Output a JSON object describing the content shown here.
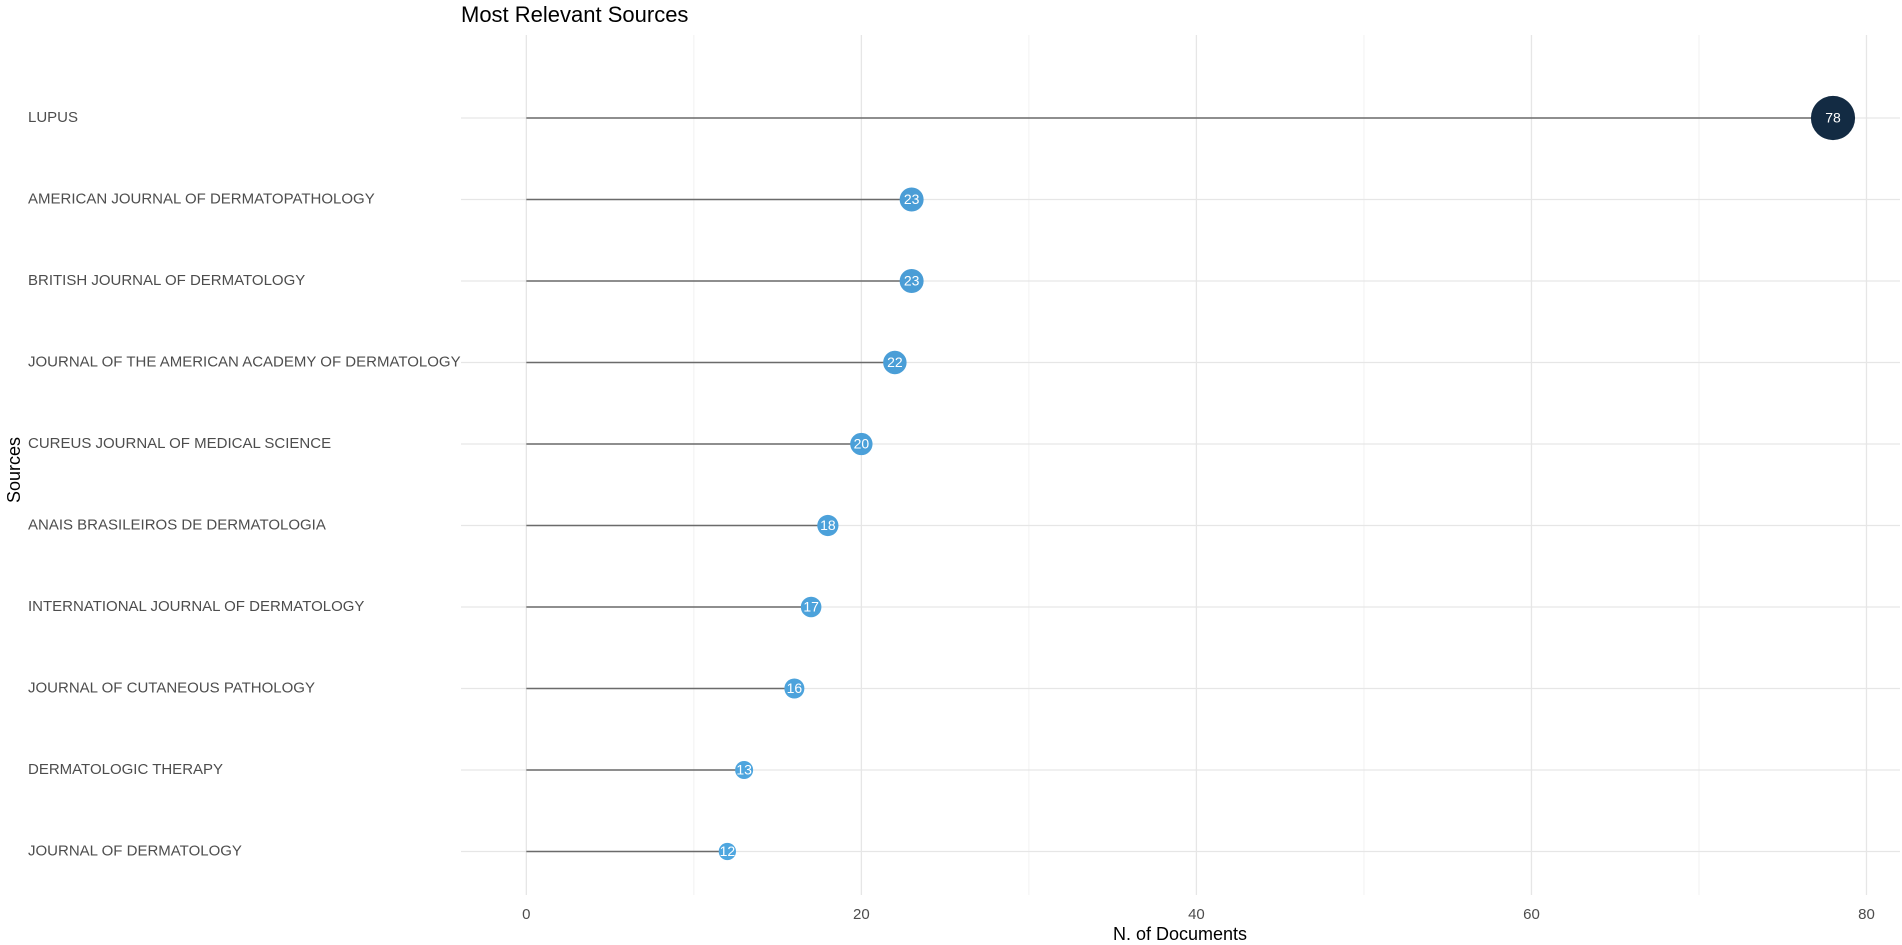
{
  "chart_data": {
    "type": "lollipop",
    "title": "Most Relevant Sources",
    "x_label": "N. of Documents",
    "y_label": "Sources",
    "categories": [
      "LUPUS",
      "AMERICAN JOURNAL OF DERMATOPATHOLOGY",
      "BRITISH JOURNAL OF DERMATOLOGY",
      "JOURNAL OF THE AMERICAN ACADEMY OF DERMATOLOGY",
      "CUREUS JOURNAL OF MEDICAL SCIENCE",
      "ANAIS BRASILEIROS DE DERMATOLOGIA",
      "INTERNATIONAL JOURNAL OF DERMATOLOGY",
      "JOURNAL OF CUTANEOUS PATHOLOGY",
      "DERMATOLOGIC THERAPY",
      "JOURNAL OF DERMATOLOGY"
    ],
    "values": [
      78,
      23,
      23,
      22,
      20,
      18,
      17,
      16,
      13,
      12
    ],
    "colors": [
      "#132b43",
      "#4a9dd6",
      "#4a9dd6",
      "#4a9ed7",
      "#4ba0d9",
      "#4ca1da",
      "#4ca2db",
      "#4da3dc",
      "#4ea5de",
      "#4ea6df"
    ],
    "stem_color": "#6b6b6b",
    "xlim": [
      -3.9,
      82
    ],
    "xticks": [
      0,
      20,
      40,
      60,
      80
    ],
    "xminorticks": [
      10,
      30,
      50,
      70
    ],
    "grid": true
  }
}
